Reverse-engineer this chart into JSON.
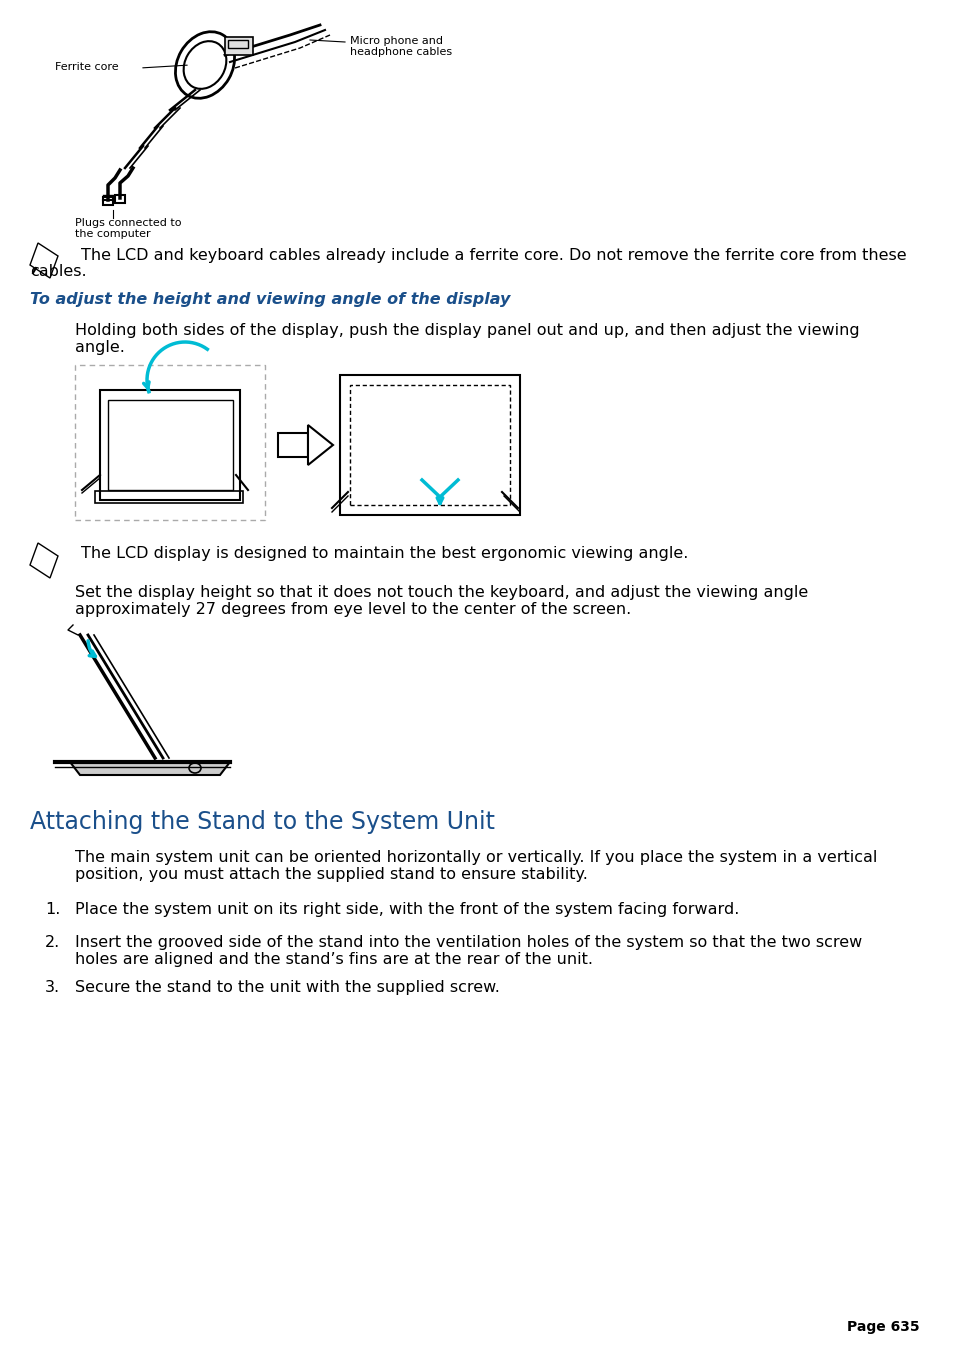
{
  "bg_color": "#ffffff",
  "page_number": "Page 635",
  "section_heading": "Attaching the Stand to the System Unit",
  "section_heading_color": "#1a4f8a",
  "subheading": "To adjust the height and viewing angle of the display",
  "subheading_color": "#1a4f8a",
  "note_text_1_line1": " The LCD and keyboard cables already include a ferrite core. Do not remove the ferrite core from these",
  "note_text_1_line2": "cables.",
  "note_text_2": " The LCD display is designed to maintain the best ergonomic viewing angle.",
  "body_text_1_line1": "Holding both sides of the display, push the display panel out and up, and then adjust the viewing",
  "body_text_1_line2": "angle.",
  "body_text_2_line1": "Set the display height so that it does not touch the keyboard, and adjust the viewing angle",
  "body_text_2_line2": "approximately 27 degrees from eye level to the center of the screen.",
  "section_body_line1": "The main system unit can be oriented horizontally or vertically. If you place the system in a vertical",
  "section_body_line2": "position, you must attach the supplied stand to ensure stability.",
  "list_item_1": "Place the system unit on its right side, with the front of the system facing forward.",
  "list_item_2_line1": "Insert the grooved side of the stand into the ventilation holes of the system so that the two screw",
  "list_item_2_line2": "holes are aligned and the stand’s fins are at the rear of the unit.",
  "list_item_3": "Secure the stand to the unit with the supplied screw.",
  "label_ferrite_core": "Ferrite core",
  "label_microphone_line1": "Micro phone and",
  "label_microphone_line2": "headphone cables",
  "label_plugs_line1": "Plugs connected to",
  "label_plugs_line2": "the computer",
  "font_size_body": 11.5,
  "font_size_note": 11.5,
  "font_size_heading": 17,
  "font_size_subheading": 11.5,
  "font_size_label": 8,
  "font_size_page": 10,
  "text_color": "#000000",
  "cyan_color": "#00bcd4"
}
